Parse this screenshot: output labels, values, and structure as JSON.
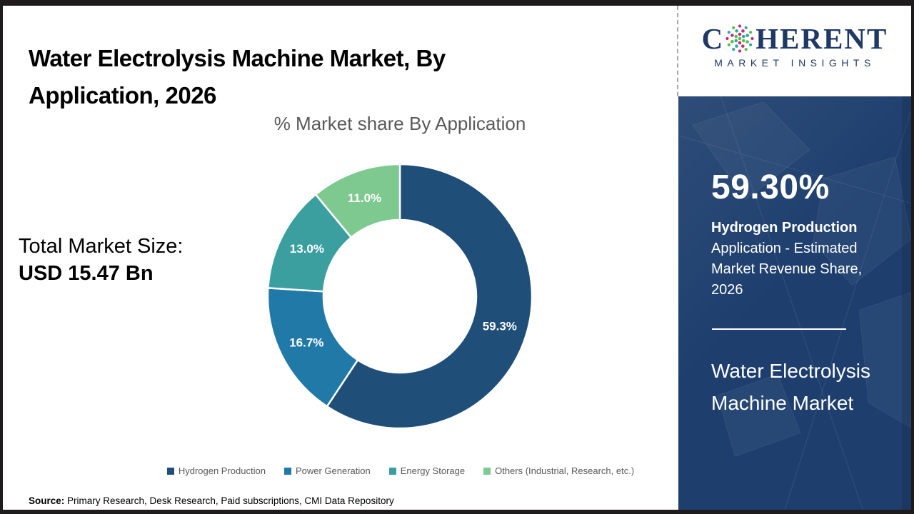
{
  "header": {
    "title": "Water Electrolysis Machine Market, By Application, 2026"
  },
  "logo": {
    "brand_first": "C",
    "brand_rest": "HERENT",
    "subtitle": "MARKET INSIGHTS",
    "globe_icon": "dotted-globe",
    "globe_colors": [
      "#C42C7D",
      "#2FA8A2",
      "#62BB46"
    ]
  },
  "main": {
    "total_market_label": "Total Market Size:",
    "total_market_value": "USD 15.47 Bn"
  },
  "chart_data": {
    "type": "pie",
    "subtype": "donut",
    "title": "% Market share By Application",
    "categories": [
      "Hydrogen Production",
      "Power Generation",
      "Energy Storage",
      "Others (Industrial, Research, etc.)"
    ],
    "values": [
      59.3,
      16.7,
      13.0,
      11.0
    ],
    "labels": [
      "59.3%",
      "16.7%",
      "13.0%",
      "11.0%"
    ],
    "colors": [
      "#1F4E79",
      "#2179A8",
      "#3B9FA0",
      "#7DC98F"
    ],
    "start_angle_deg": -90,
    "hole_ratio": 0.578,
    "legend_position": "bottom"
  },
  "sidebar": {
    "stat_value": "59.30%",
    "stat_label_bold": "Hydrogen Production",
    "stat_label_rest": "Application - Estimated Market Revenue Share, 2026",
    "market_name": "Water Electrolysis Machine Market",
    "bg_color": "#1E3F6E"
  },
  "footer": {
    "source_label": "Source:",
    "source_text": "Primary Research, Desk Research, Paid subscriptions, CMI Data Repository"
  }
}
